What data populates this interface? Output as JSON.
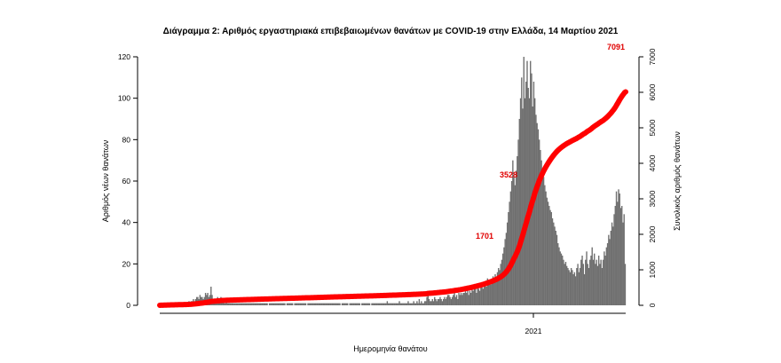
{
  "chart_data": {
    "type": "bar",
    "title": "Διάγραμμα 2: Αριθμός εργαστηριακά επιβεβαιωμένων θανάτων με COVID-19 στην Ελλάδα, 14 Μαρτίου 2021",
    "xlabel": "Ημερομηνία θανάτου",
    "ylabel": "Αριθμός νέων θανάτων",
    "ylabel_right": "Συνολικός αριθμός θανάτων",
    "ylim": [
      0,
      120
    ],
    "ylim_right": [
      0,
      7000
    ],
    "yticks": [
      0,
      20,
      40,
      60,
      80,
      100,
      120
    ],
    "yticks_right": [
      0,
      1000,
      2000,
      3000,
      4000,
      5000,
      6000,
      7000
    ],
    "x_tick_labels": [
      "2021"
    ],
    "grid": false,
    "bar_color": "#707070",
    "line_color": "#ff0000",
    "annotation_color": "#e00000",
    "series": [
      {
        "type": "bar",
        "values": [
          1,
          1,
          1,
          1,
          1,
          1,
          1,
          1,
          1,
          1,
          1,
          1,
          1,
          1,
          1,
          1,
          1,
          1,
          1,
          1,
          0,
          0,
          1,
          1,
          1,
          1,
          2,
          1,
          2,
          2,
          3,
          2,
          3,
          4,
          4,
          3,
          5,
          4,
          4,
          3,
          4,
          6,
          5,
          6,
          4,
          5,
          9,
          5,
          3,
          2,
          3,
          2,
          4,
          2,
          3,
          4,
          3,
          2,
          1,
          1,
          2,
          1,
          1,
          1,
          1,
          1,
          1,
          1,
          1,
          1,
          1,
          1,
          1,
          1,
          1,
          1,
          1,
          1,
          1,
          1,
          1,
          1,
          1,
          1,
          1,
          1,
          1,
          1,
          1,
          1,
          1,
          1,
          1,
          1,
          1,
          1,
          1,
          1,
          0,
          1,
          1,
          1,
          1,
          1,
          1,
          1,
          1,
          1,
          1,
          1,
          1,
          1,
          1,
          1,
          0,
          1,
          1,
          1,
          1,
          1,
          1,
          0,
          1,
          1,
          1,
          1,
          1,
          1,
          1,
          1,
          1,
          1,
          1,
          0,
          1,
          1,
          1,
          1,
          1,
          1,
          1,
          1,
          1,
          1,
          1,
          1,
          1,
          1,
          1,
          1,
          1,
          1,
          1,
          1,
          1,
          1,
          1,
          1,
          1,
          1,
          1,
          1,
          1,
          1,
          0,
          1,
          1,
          1,
          1,
          1,
          1,
          0,
          1,
          1,
          1,
          1,
          1,
          1,
          1,
          1,
          1,
          1,
          0,
          1,
          1,
          1,
          1,
          1,
          1,
          1,
          1,
          0,
          1,
          1,
          1,
          1,
          1,
          1,
          1,
          1,
          1,
          1,
          1,
          1,
          1,
          1,
          2,
          1,
          1,
          1,
          1,
          1,
          1,
          1,
          1,
          1,
          1,
          2,
          1,
          1,
          1,
          1,
          1,
          1,
          1,
          2,
          1,
          1,
          1,
          1,
          2,
          1,
          1,
          2,
          1,
          3,
          1,
          2,
          1,
          1,
          2,
          2,
          4,
          6,
          3,
          2,
          2,
          3,
          2,
          4,
          3,
          2,
          3,
          3,
          4,
          3,
          2,
          3,
          4,
          3,
          4,
          5,
          5,
          4,
          3,
          4,
          5,
          6,
          4,
          5,
          3,
          6,
          5,
          6,
          5,
          6,
          6,
          7,
          6,
          8,
          5,
          7,
          6,
          8,
          7,
          9,
          8,
          6,
          9,
          8,
          7,
          9,
          10,
          8,
          10,
          11,
          9,
          13,
          11,
          12,
          10,
          12,
          14,
          12,
          15,
          13,
          16,
          18,
          17,
          20,
          22,
          25,
          28,
          32,
          35,
          40,
          45,
          50,
          55,
          60,
          70,
          62,
          58,
          65,
          72,
          80,
          90,
          100,
          110,
          95,
          120,
          100,
          108,
          118,
          105,
          100,
          118,
          112,
          96,
          108,
          100,
          92,
          88,
          85,
          80,
          75,
          70,
          66,
          62,
          58,
          55,
          52,
          50,
          48,
          46,
          45,
          42,
          40,
          38,
          36,
          34,
          30,
          28,
          26,
          25,
          24,
          22,
          20,
          21,
          19,
          18,
          17,
          16,
          18,
          17,
          15,
          16,
          14,
          18,
          20,
          16,
          18,
          22,
          24,
          20,
          15,
          22,
          26,
          20,
          18,
          22,
          24,
          28,
          22,
          25,
          20,
          22,
          19,
          24,
          20,
          22,
          18,
          22,
          26,
          24,
          28,
          30,
          34,
          32,
          36,
          40,
          38,
          44,
          48,
          55,
          50,
          56,
          54,
          47,
          48,
          40,
          44,
          20
        ]
      },
      {
        "type": "line",
        "values_right": [
          1,
          2,
          3,
          4,
          5,
          6,
          7,
          8,
          9,
          10,
          11,
          12,
          13,
          14,
          15,
          16,
          17,
          18,
          19,
          20,
          20,
          20,
          21,
          22,
          23,
          24,
          26,
          27,
          29,
          31,
          34,
          36,
          39,
          43,
          47,
          50,
          55,
          59,
          63,
          66,
          70,
          76,
          81,
          87,
          91,
          96,
          105,
          110,
          113,
          115,
          118,
          120,
          124,
          126,
          129,
          133,
          136,
          138,
          139,
          140,
          142,
          143,
          144,
          145,
          146,
          147,
          148,
          149,
          150,
          151,
          152,
          153,
          154,
          155,
          156,
          157,
          158,
          159,
          160,
          161,
          162,
          163,
          164,
          165,
          166,
          167,
          168,
          169,
          170,
          171,
          172,
          173,
          174,
          175,
          176,
          177,
          178,
          179,
          179,
          180,
          181,
          182,
          183,
          184,
          185,
          186,
          187,
          188,
          189,
          190,
          191,
          192,
          193,
          194,
          194,
          195,
          196,
          197,
          198,
          199,
          200,
          200,
          201,
          202,
          203,
          204,
          205,
          206,
          207,
          208,
          209,
          210,
          211,
          211,
          212,
          213,
          214,
          215,
          216,
          217,
          218,
          219,
          220,
          221,
          222,
          223,
          224,
          225,
          226,
          227,
          228,
          229,
          230,
          231,
          232,
          233,
          234,
          235,
          236,
          237,
          238,
          239,
          240,
          241,
          241,
          242,
          243,
          244,
          245,
          246,
          247,
          247,
          248,
          249,
          250,
          251,
          252,
          253,
          254,
          255,
          256,
          257,
          257,
          258,
          259,
          260,
          261,
          262,
          263,
          264,
          265,
          265,
          266,
          267,
          268,
          269,
          270,
          271,
          272,
          273,
          274,
          275,
          276,
          277,
          278,
          279,
          281,
          282,
          283,
          284,
          285,
          286,
          287,
          288,
          289,
          290,
          291,
          293,
          294,
          295,
          296,
          297,
          298,
          299,
          300,
          302,
          303,
          304,
          305,
          306,
          308,
          309,
          310,
          312,
          313,
          316,
          317,
          319,
          320,
          321,
          323,
          325,
          329,
          335,
          338,
          340,
          342,
          345,
          347,
          351,
          354,
          356,
          359,
          362,
          366,
          369,
          371,
          374,
          378,
          381,
          385,
          390,
          395,
          399,
          402,
          406,
          411,
          417,
          421,
          426,
          429,
          435,
          440,
          446,
          451,
          457,
          463,
          470,
          476,
          484,
          489,
          496,
          502,
          510,
          517,
          526,
          534,
          540,
          549,
          557,
          564,
          573,
          583,
          591,
          601,
          612,
          621,
          634,
          645,
          657,
          667,
          679,
          693,
          705,
          720,
          733,
          749,
          767,
          784,
          804,
          826,
          851,
          879,
          911,
          946,
          986,
          1031,
          1081,
          1136,
          1196,
          1266,
          1328,
          1386,
          1451,
          1523,
          1603,
          1693,
          1793,
          1903,
          1998,
          2118,
          2218,
          2326,
          2444,
          2549,
          2649,
          2767,
          2879,
          2975,
          3083,
          3183,
          3275,
          3363,
          3448,
          3528,
          3603,
          3673,
          3739,
          3801,
          3859,
          3914,
          3966,
          4016,
          4064,
          4110,
          4155,
          4197,
          4237,
          4275,
          4311,
          4345,
          4375,
          4403,
          4429,
          4454,
          4478,
          4500,
          4520,
          4541,
          4560,
          4578,
          4595,
          4611,
          4629,
          4646,
          4661,
          4677,
          4691,
          4709,
          4729,
          4745,
          4763,
          4785,
          4809,
          4829,
          4844,
          4866,
          4892,
          4912,
          4930,
          4952,
          4976,
          5004,
          5026,
          5051,
          5071,
          5093,
          5112,
          5136,
          5156,
          5178,
          5196,
          5218,
          5244,
          5268,
          5296,
          5326,
          5360,
          5392,
          5428,
          5468,
          5506,
          5550,
          5598,
          5653,
          5703,
          5759,
          5813,
          5860,
          5908,
          5948,
          5992,
          6012
        ]
      }
    ],
    "annotations": [
      "7091",
      "3528",
      "1701"
    ]
  }
}
